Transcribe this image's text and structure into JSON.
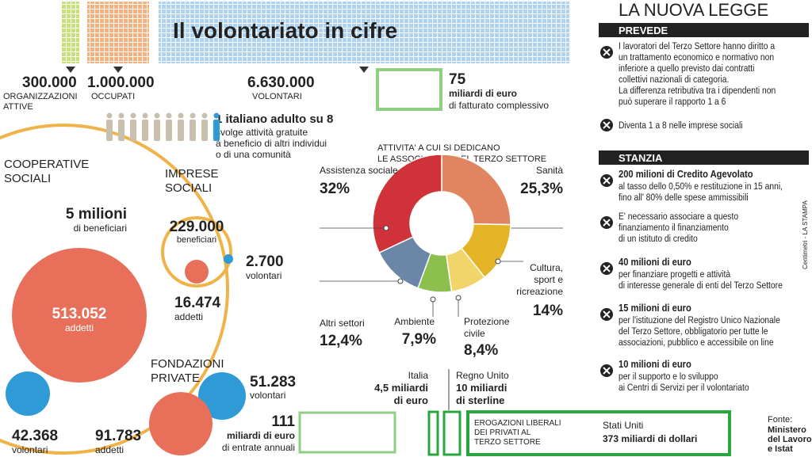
{
  "header": {
    "title": "Il volontariato in cifre"
  },
  "stats": [
    {
      "value": "300.000",
      "label": [
        "ORGANIZZAZIONI",
        "ATTIVE"
      ]
    },
    {
      "value": "1.000.000",
      "label": [
        "OCCUPATI"
      ]
    },
    {
      "value": "6.630.000",
      "label": [
        "VOLONTARI"
      ]
    }
  ],
  "turnover": {
    "value": "75",
    "unit": "miliardi di euro",
    "label": "di fatturato complessivo"
  },
  "ratio": {
    "headline": "1 italiano adulto su 8",
    "lines": [
      "svolge attività gratuite",
      "a beneficio di altri individui",
      "o di una comunità"
    ]
  },
  "cooperative": {
    "title": [
      "COOPERATIVE",
      "SOCIALI"
    ],
    "beneficiaries": {
      "value": "5 milioni",
      "label": "di beneficiari"
    },
    "employees": {
      "value": "513.052",
      "label": "addetti"
    },
    "volunteers": {
      "value": "42.368",
      "label": "volontari"
    }
  },
  "social_enterprises": {
    "title": [
      "IMPRESE",
      "SOCIALI"
    ],
    "beneficiaries": {
      "value": "229.000",
      "label": "beneficiari"
    },
    "volunteers": {
      "value": "2.700",
      "label": "volontari"
    },
    "employees": {
      "value": "16.474",
      "label": "addetti"
    }
  },
  "foundations": {
    "title": [
      "FONDAZIONI",
      "PRIVATE"
    ],
    "volunteers": {
      "value": "51.283",
      "label": "volontari"
    },
    "employees": {
      "value": "91.783",
      "label": "addetti"
    },
    "revenue": {
      "value": "111",
      "unit": "miliardi di euro",
      "label": "di entrate annuali"
    }
  },
  "activities": {
    "title": [
      "ATTIVITA' A CUI SI DEDICANO",
      "LE ASSOCIAZIONI DEL TERZO SETTORE"
    ],
    "segments": [
      {
        "name": [
          "Sanità"
        ],
        "value": 25.3,
        "value_label": "25,3%",
        "color": "#e0855f"
      },
      {
        "name": [
          "Cultura,",
          "sport e",
          "ricreazione"
        ],
        "value": 14,
        "value_label": "14%",
        "color": "#e3b526"
      },
      {
        "name": [
          "Protezione",
          "civile"
        ],
        "value": 8.4,
        "value_label": "8,4%",
        "color": "#f1d46a"
      },
      {
        "name": [
          "Ambiente"
        ],
        "value": 7.9,
        "value_label": "7,9%",
        "color": "#8dbf4f"
      },
      {
        "name": [
          "Altri settori"
        ],
        "value": 12.4,
        "value_label": "12,4%",
        "color": "#6b86a6"
      },
      {
        "name": [
          "Assistenza sociale"
        ],
        "value": 32,
        "value_label": "32%",
        "color": "#cf3238"
      }
    ]
  },
  "donations": {
    "italy": {
      "name": "Italia",
      "amount": [
        "4,5 miliardi",
        "di euro"
      ]
    },
    "uk": {
      "name": "Regno Unito",
      "amount": [
        "10 miliardi",
        "di sterline"
      ]
    },
    "label": [
      "EROGAZIONI LIBERALI",
      "DEI PRIVATI AL",
      "TERZO SETTORE"
    ],
    "usa": {
      "name": "Stati Uniti",
      "amount": "373 miliardi di dollari"
    }
  },
  "source": {
    "label": "Fonte:",
    "lines": [
      "Ministero",
      "del Lavoro",
      "e Istat"
    ]
  },
  "credit": "Centimetri - LA STAMPA",
  "law": {
    "title": "LA NUOVA LEGGE",
    "prevede": {
      "heading": "PREVEDE",
      "items": [
        {
          "lines": [
            "I lavoratori del Terzo Settore hanno diritto a",
            "un trattamento economico e normativo non",
            "inferiore a quello previsto dai contratti",
            "collettivi nazionali di categoria.",
            "La differenza retributiva tra i dipendenti non",
            "può superare il rapporto 1 a 6"
          ]
        },
        {
          "lines": [
            "Diventa 1 a 8 nelle imprese sociali"
          ]
        }
      ]
    },
    "stanzia": {
      "heading": "STANZIA",
      "items": [
        {
          "headline": "200 milioni di Credito Agevolato",
          "lines": [
            "al tasso dello 0,50% e restituzione in 15 anni,",
            "fino all' 80% delle spese ammissibili"
          ]
        },
        {
          "lines": [
            "E' necessario associare a questo",
            "finanziamento il finanziamento",
            "di un istituto di credito"
          ]
        },
        {
          "headline": "40 milioni di euro",
          "lines": [
            "per finanziare progetti e attività",
            "di interesse generale di enti del Terzo Settore"
          ]
        },
        {
          "headline": "15 milioni di euro",
          "lines": [
            "per l'istituzione del Registro Unico Nazionale",
            "del Terzo Settore, obbligatorio per tutte le",
            "associazioni, pubblico e accessibile on line"
          ]
        },
        {
          "headline": "10 milioni di euro",
          "lines": [
            "per il supporto e lo sviluppo",
            "ai Centri di Servizi per il volontariato"
          ]
        }
      ]
    }
  }
}
